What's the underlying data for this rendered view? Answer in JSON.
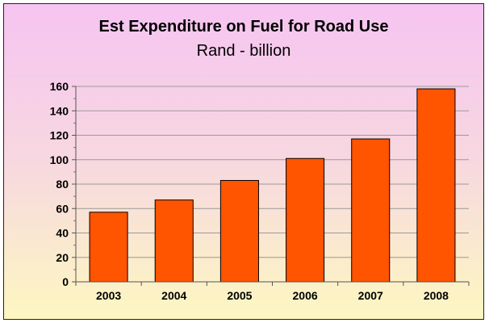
{
  "chart_data": {
    "type": "bar",
    "title": "Est Expenditure on Fuel for Road Use",
    "subtitle": "Rand - billion",
    "categories": [
      "2003",
      "2004",
      "2005",
      "2006",
      "2007",
      "2008"
    ],
    "values": [
      57,
      67,
      83,
      101,
      117,
      158
    ],
    "ylim": [
      0,
      160
    ],
    "yticks": [
      "0",
      "20",
      "40",
      "60",
      "80",
      "100",
      "120",
      "140",
      "160"
    ],
    "ytick_values": [
      0,
      20,
      40,
      60,
      80,
      100,
      120,
      140,
      160
    ],
    "grid": true,
    "legend": "none",
    "bar_color": "#ff5400",
    "bar_edge_color": "#000000",
    "gridline_color": "#9a9a9a"
  }
}
